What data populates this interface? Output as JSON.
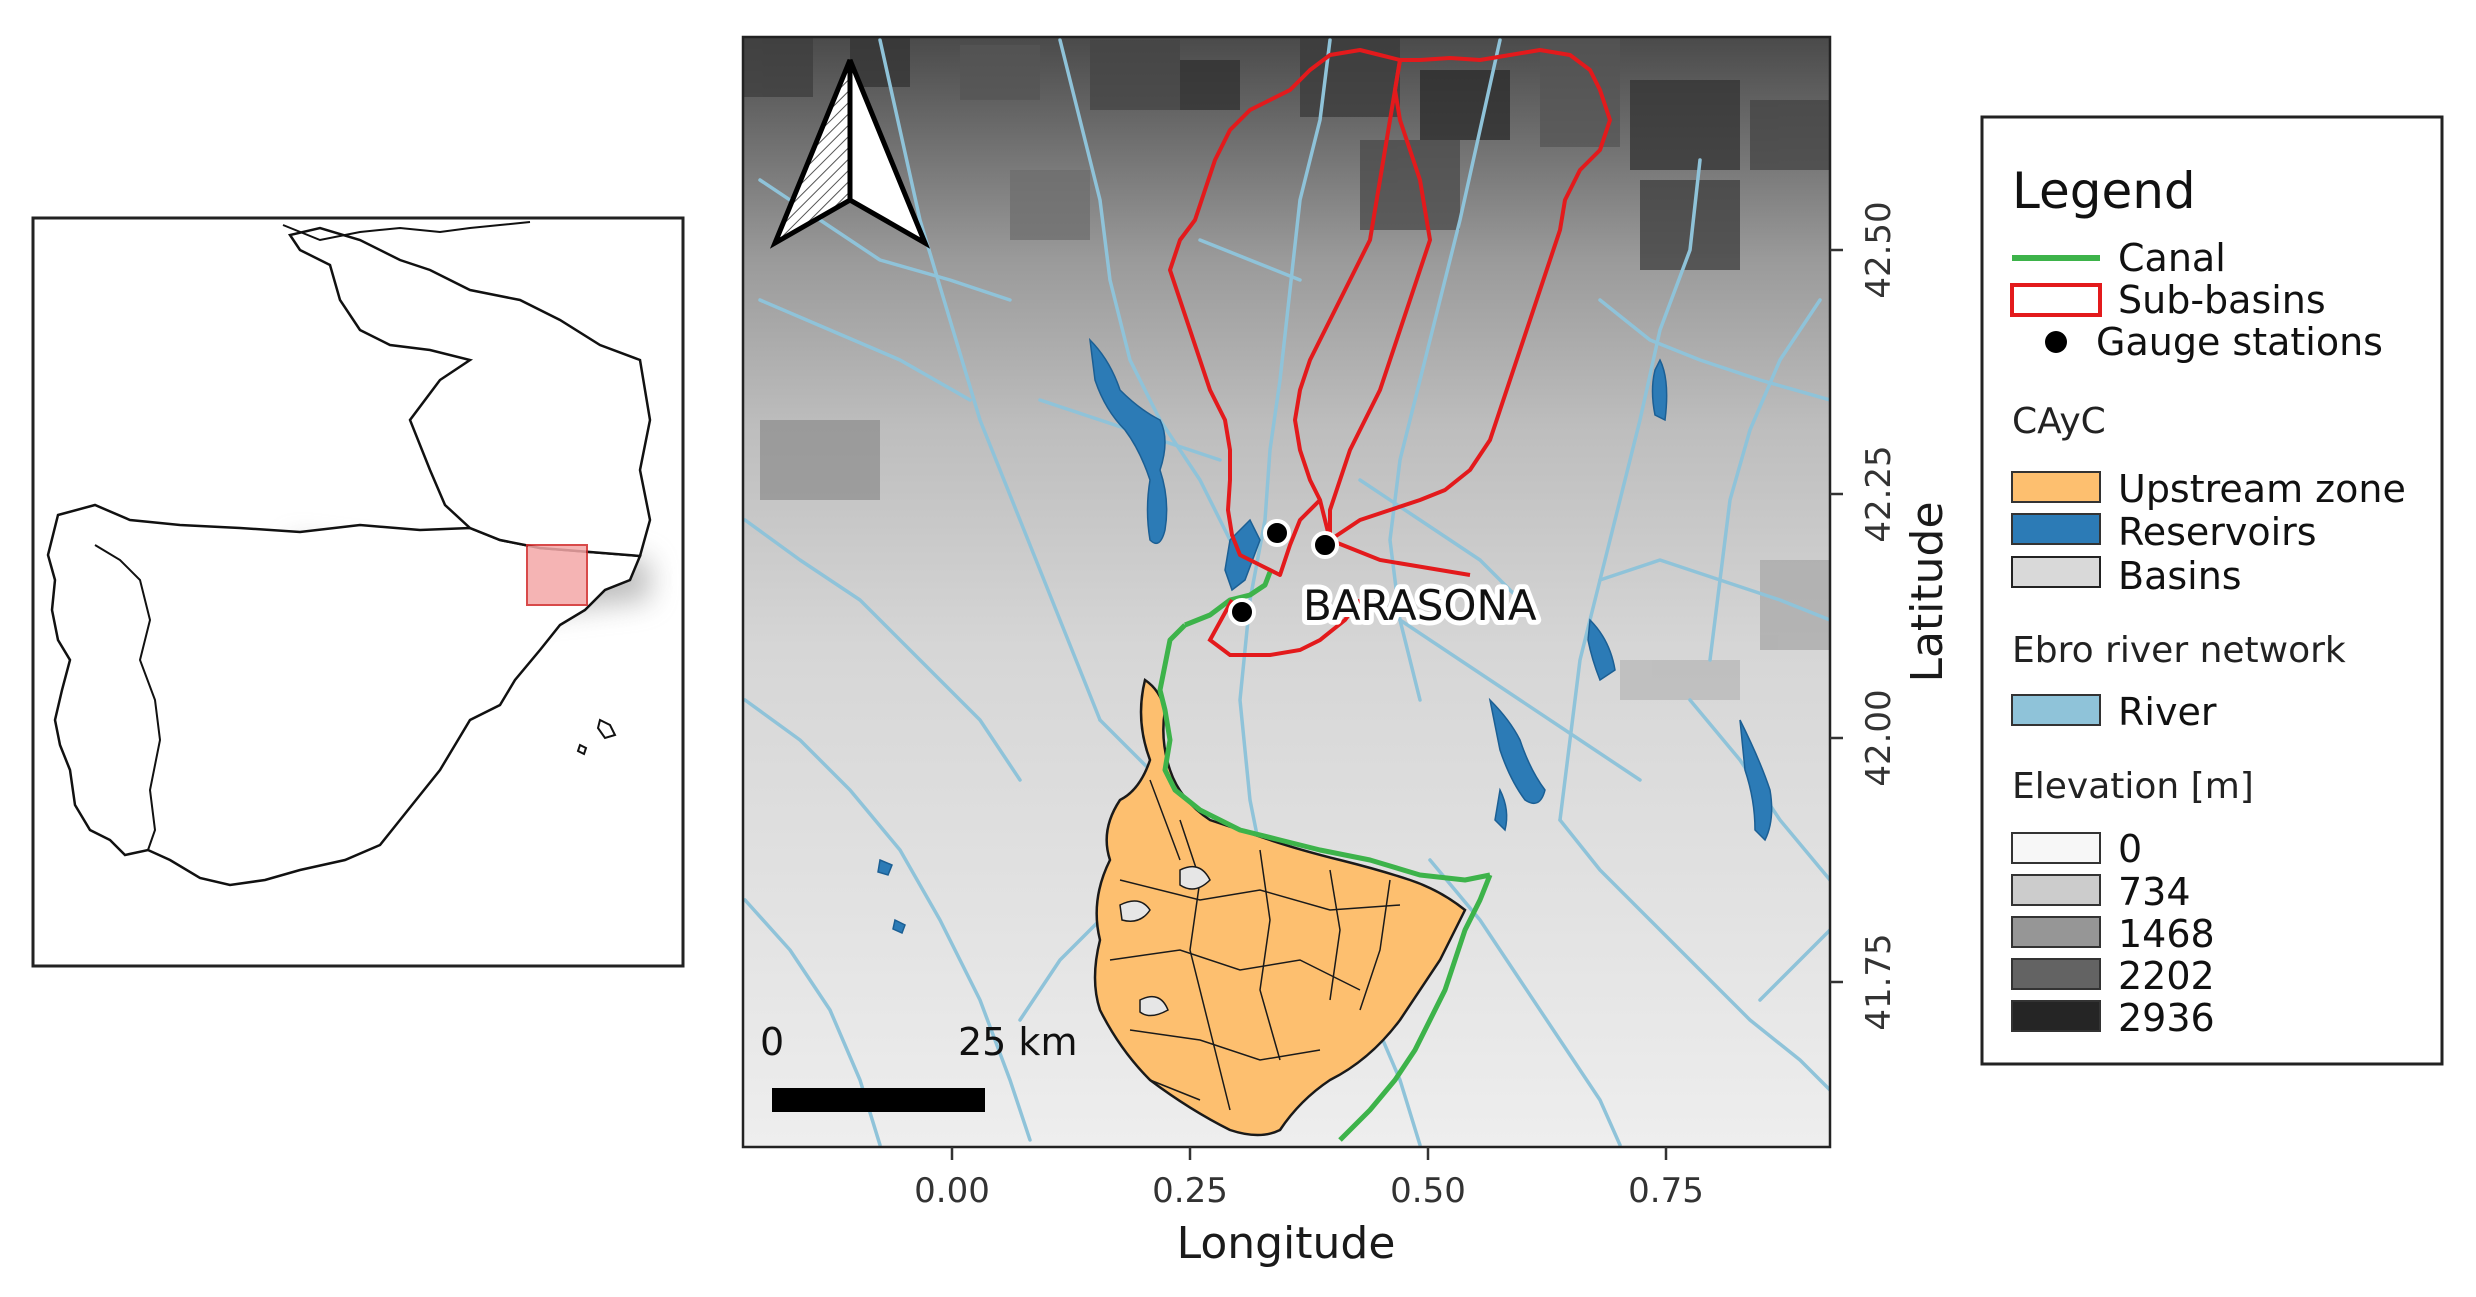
{
  "map": {
    "place_label": "BARASONA",
    "x_axis": {
      "title": "Longitude",
      "ticks": [
        "0.00",
        "0.25",
        "0.50",
        "0.75"
      ]
    },
    "y_axis": {
      "title": "Latitude",
      "ticks": [
        "42.50",
        "42.25",
        "42.00",
        "41.75"
      ]
    },
    "scale_bar": {
      "start_label": "0",
      "end_label": "25 km"
    }
  },
  "legend": {
    "title": "Legend",
    "items": {
      "canal": {
        "label": "Canal",
        "color": "#3db34a"
      },
      "subbasins": {
        "label": "Sub-basins",
        "color": "#e31a1c"
      },
      "gauges": {
        "label": "Gauge stations",
        "color": "#000000"
      }
    },
    "cayc": {
      "heading": "CAyC",
      "upstream": {
        "label": "Upstream zone",
        "color": "#fdbf6f"
      },
      "reservoirs": {
        "label": "Reservoirs",
        "color": "#2c7bb6"
      },
      "basins": {
        "label": "Basins",
        "color": "#d9d9d9"
      }
    },
    "rivers": {
      "heading": "Ebro river network",
      "river": {
        "label": "River",
        "color": "#8fc3d9"
      }
    },
    "elevation": {
      "heading": "Elevation [m]",
      "classes": [
        {
          "label": "0",
          "color": "#f7f7f7"
        },
        {
          "label": "734",
          "color": "#cccccc"
        },
        {
          "label": "1468",
          "color": "#969696"
        },
        {
          "label": "2202",
          "color": "#636363"
        },
        {
          "label": "2936",
          "color": "#252525"
        }
      ]
    }
  }
}
